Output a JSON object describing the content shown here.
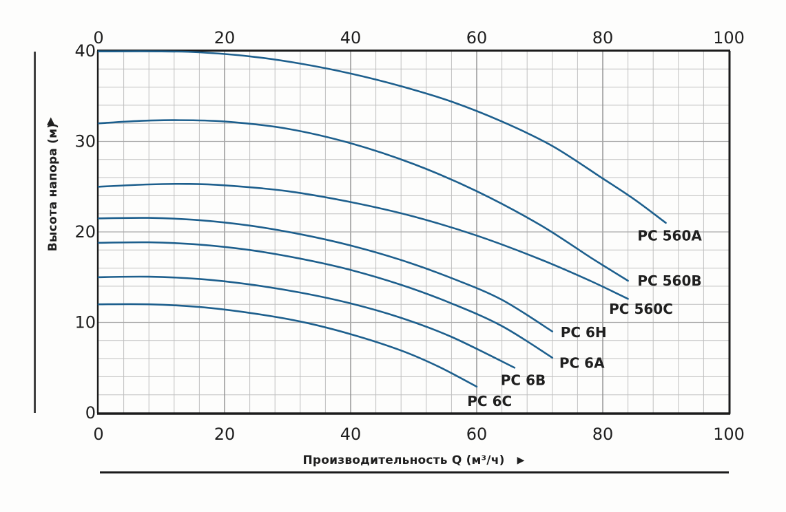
{
  "figure": {
    "background": "#fdfdfc",
    "curve_color": "#1d5f8d",
    "grid_minor_color": "#bfbfbf",
    "grid_major_v_color": "#8f8f8f",
    "grid_major_h_color": "#a8a8a8",
    "axis_color": "#1b1b1b",
    "text_color": "#1f1f1f"
  },
  "chart_data": {
    "type": "line",
    "title": "",
    "xlabel": "Производительность Q (м³/ч)",
    "xlabel_arrow": "▶",
    "ylabel": "Высота напора (м)",
    "ylabel_arrow": "▲",
    "xlim": [
      0,
      100
    ],
    "ylim": [
      0,
      40
    ],
    "x_ticks": [
      0,
      20,
      40,
      60,
      80,
      100
    ],
    "x_ticks_shown": "top and bottom",
    "y_ticks": [
      40,
      30,
      20,
      10,
      0
    ],
    "x_minor_step": 4,
    "y_minor_step": 2,
    "x_major_step": 20,
    "y_major_step": 10,
    "grid": "on",
    "legend": "labels at curve ends",
    "series": [
      {
        "name": "PC 560A",
        "points": [
          [
            0,
            39.95
          ],
          [
            10,
            39.95
          ],
          [
            16,
            39.85
          ],
          [
            24,
            39.4
          ],
          [
            32,
            38.6
          ],
          [
            40,
            37.5
          ],
          [
            48,
            36.1
          ],
          [
            56,
            34.4
          ],
          [
            64,
            32.2
          ],
          [
            72,
            29.5
          ],
          [
            80,
            25.9
          ],
          [
            85,
            23.6
          ],
          [
            90,
            21.0
          ]
        ],
        "label_at": [
          85.5,
          19.6
        ]
      },
      {
        "name": "PC 560B",
        "points": [
          [
            0,
            32
          ],
          [
            6,
            32.25
          ],
          [
            12,
            32.35
          ],
          [
            20,
            32.2
          ],
          [
            30,
            31.4
          ],
          [
            40,
            29.8
          ],
          [
            50,
            27.5
          ],
          [
            60,
            24.5
          ],
          [
            70,
            20.8
          ],
          [
            78,
            17.2
          ],
          [
            84,
            14.6
          ]
        ],
        "label_at": [
          85.5,
          14.6
        ]
      },
      {
        "name": "PC 560C",
        "points": [
          [
            0,
            25
          ],
          [
            8,
            25.25
          ],
          [
            14,
            25.3
          ],
          [
            20,
            25.15
          ],
          [
            30,
            24.5
          ],
          [
            40,
            23.3
          ],
          [
            50,
            21.7
          ],
          [
            60,
            19.6
          ],
          [
            70,
            17.0
          ],
          [
            78,
            14.6
          ],
          [
            84,
            12.6
          ]
        ],
        "label_at": [
          81.0,
          11.5
        ]
      },
      {
        "name": "PC 6H",
        "points": [
          [
            0,
            21.5
          ],
          [
            8,
            21.55
          ],
          [
            16,
            21.3
          ],
          [
            24,
            20.7
          ],
          [
            32,
            19.75
          ],
          [
            40,
            18.5
          ],
          [
            48,
            16.9
          ],
          [
            56,
            14.9
          ],
          [
            64,
            12.5
          ],
          [
            72,
            9.0
          ]
        ],
        "label_at": [
          73.3,
          8.9
        ]
      },
      {
        "name": "PC 6A",
        "points": [
          [
            0,
            18.8
          ],
          [
            8,
            18.85
          ],
          [
            16,
            18.6
          ],
          [
            24,
            18.0
          ],
          [
            32,
            17.05
          ],
          [
            40,
            15.8
          ],
          [
            48,
            14.15
          ],
          [
            56,
            12.1
          ],
          [
            64,
            9.6
          ],
          [
            72,
            6.1
          ]
        ],
        "label_at": [
          73.1,
          5.5
        ]
      },
      {
        "name": "PC 6B",
        "points": [
          [
            0,
            15
          ],
          [
            8,
            15.05
          ],
          [
            16,
            14.8
          ],
          [
            24,
            14.2
          ],
          [
            32,
            13.3
          ],
          [
            40,
            12.1
          ],
          [
            48,
            10.5
          ],
          [
            56,
            8.4
          ],
          [
            66,
            5.0
          ]
        ],
        "label_at": [
          63.8,
          3.6
        ]
      },
      {
        "name": "PC 6C",
        "points": [
          [
            0,
            12
          ],
          [
            8,
            12.0
          ],
          [
            16,
            11.7
          ],
          [
            24,
            11.05
          ],
          [
            32,
            10.1
          ],
          [
            40,
            8.7
          ],
          [
            48,
            6.9
          ],
          [
            54,
            5.1
          ],
          [
            60,
            2.9
          ]
        ],
        "label_at": [
          58.5,
          1.3
        ]
      }
    ]
  }
}
